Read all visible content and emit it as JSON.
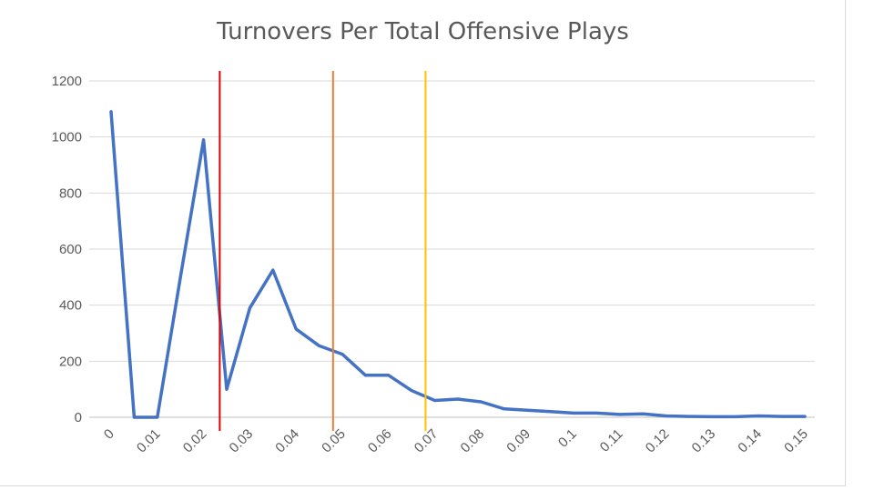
{
  "chart_data": {
    "type": "line",
    "title": "Turnovers Per Total Offensive Plays",
    "xlabel": "",
    "ylabel": "",
    "x": [
      0,
      0.005,
      0.01,
      0.015,
      0.02,
      0.025,
      0.03,
      0.035,
      0.04,
      0.045,
      0.05,
      0.055,
      0.06,
      0.065,
      0.07,
      0.075,
      0.08,
      0.085,
      0.09,
      0.095,
      0.1,
      0.105,
      0.11,
      0.115,
      0.12,
      0.125,
      0.13,
      0.135,
      0.14,
      0.145,
      0.15
    ],
    "series": [
      {
        "color": "#4472c4",
        "values": [
          1090,
          0,
          0,
          500,
          990,
          100,
          390,
          525,
          315,
          255,
          225,
          150,
          150,
          95,
          60,
          65,
          55,
          30,
          25,
          20,
          15,
          15,
          10,
          12,
          5,
          3,
          2,
          2,
          5,
          3,
          3
        ]
      }
    ],
    "x_ticks": [
      "0",
      "0.01",
      "0.02",
      "0.03",
      "0.04",
      "0.05",
      "0.06",
      "0.07",
      "0.08",
      "0.09",
      "0.1",
      "0.11",
      "0.12",
      "0.13",
      "0.14",
      "0.15"
    ],
    "y_ticks": [
      "0",
      "200",
      "400",
      "600",
      "800",
      "1000",
      "1200"
    ],
    "ylim": [
      0,
      1200
    ],
    "xlim": [
      0,
      0.15
    ],
    "grid": true,
    "reference_lines": [
      {
        "x": 0.0235,
        "color": "#e00000"
      },
      {
        "x": 0.048,
        "color": "#ed7d31"
      },
      {
        "x": 0.068,
        "color": "#ffc000"
      }
    ]
  }
}
